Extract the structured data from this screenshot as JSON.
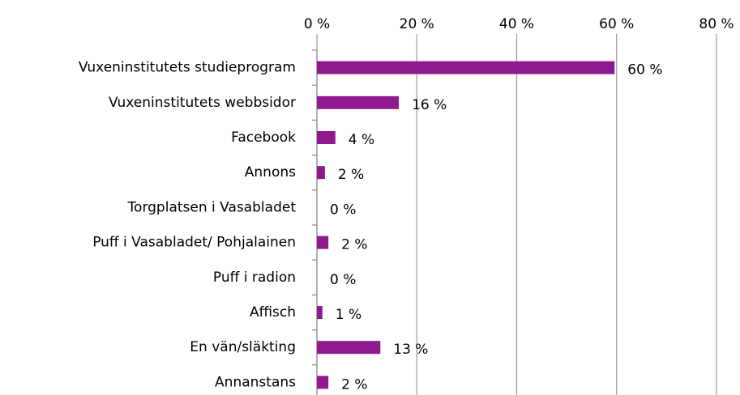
{
  "chart_data": {
    "type": "bar",
    "orientation": "horizontal",
    "categories": [
      "Vuxeninstitutets studieprogram",
      "Vuxeninstitutets webbsidor",
      "Facebook",
      "Annons",
      "Torgplatsen i Vasabladet",
      "Puff i Vasabladet/ Pohjalainen",
      "Puff i radion",
      "Affisch",
      "En vän/släkting",
      "Annanstans"
    ],
    "values": [
      59.6,
      16.4,
      3.7,
      1.6,
      0,
      2.3,
      0,
      1.1,
      12.7,
      2.3
    ],
    "value_labels": [
      "60 %",
      "16 %",
      "4 %",
      "2 %",
      "0 %",
      "2 %",
      "0 %",
      "1 %",
      "13 %",
      "2 %"
    ],
    "color": "#8e1a8e",
    "xlim": [
      0,
      80
    ],
    "xticks": [
      {
        "value": 0,
        "label": "0 %"
      },
      {
        "value": 20,
        "label": "20 %"
      },
      {
        "value": 40,
        "label": "40 %"
      },
      {
        "value": 60,
        "label": "60 %"
      },
      {
        "value": 80,
        "label": "80 %"
      }
    ],
    "grid": true
  }
}
